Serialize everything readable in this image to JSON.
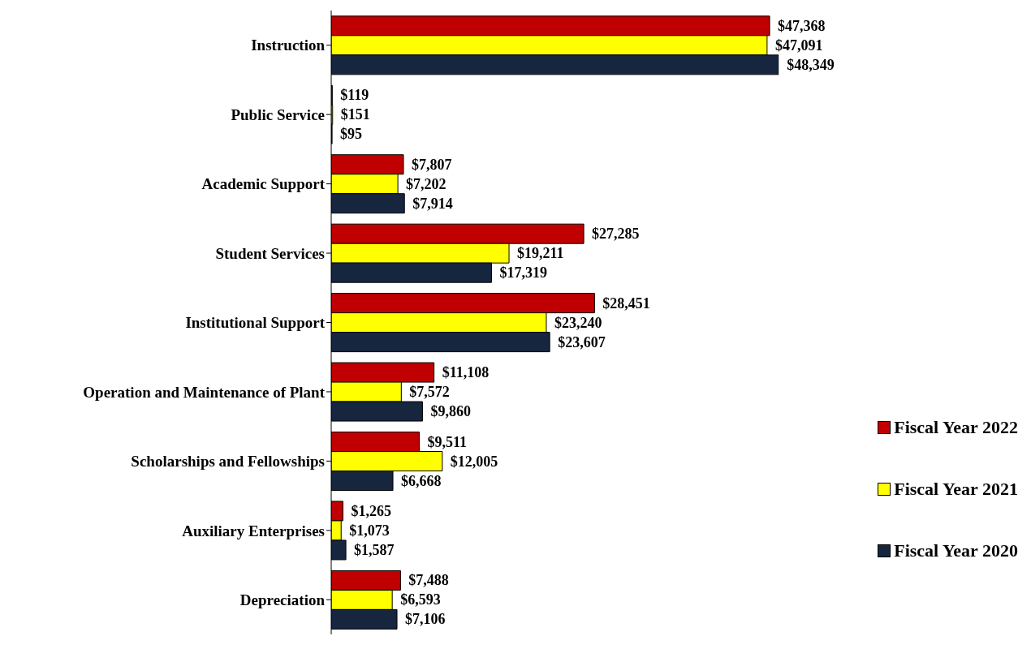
{
  "chart_data": {
    "type": "bar",
    "orientation": "horizontal",
    "categories": [
      "Instruction",
      "Public Service",
      "Academic Support",
      "Student Services",
      "Institutional Support",
      "Operation and Maintenance of Plant",
      "Scholarships and Fellowships",
      "Auxiliary Enterprises",
      "Depreciation"
    ],
    "series": [
      {
        "name": "Fiscal Year 2022",
        "color": "#c00000",
        "values": [
          47368,
          119,
          7807,
          27285,
          28451,
          11108,
          9511,
          1265,
          7488
        ],
        "value_labels": [
          "$47,368",
          "$119",
          "$7,807",
          "$27,285",
          "$28,451",
          "$11,108",
          "$9,511",
          "$1,265",
          "$7,488"
        ]
      },
      {
        "name": "Fiscal Year 2021",
        "color": "#ffff00",
        "values": [
          47091,
          151,
          7202,
          19211,
          23240,
          7572,
          12005,
          1073,
          6593
        ],
        "value_labels": [
          "$47,091",
          "$151",
          "$7,202",
          "$19,211",
          "$23,240",
          "$7,572",
          "$12,005",
          "$1,073",
          "$6,593"
        ]
      },
      {
        "name": "Fiscal Year 2020",
        "color": "#17263f",
        "values": [
          48349,
          95,
          7914,
          17319,
          23607,
          9860,
          6668,
          1587,
          7106
        ],
        "value_labels": [
          "$48,349",
          "$95",
          "$7,914",
          "$17,319",
          "$23,607",
          "$9,860",
          "$6,668",
          "$1,587",
          "$7,106"
        ]
      }
    ],
    "legend": "bottom right",
    "tick_labels": "y"
  }
}
